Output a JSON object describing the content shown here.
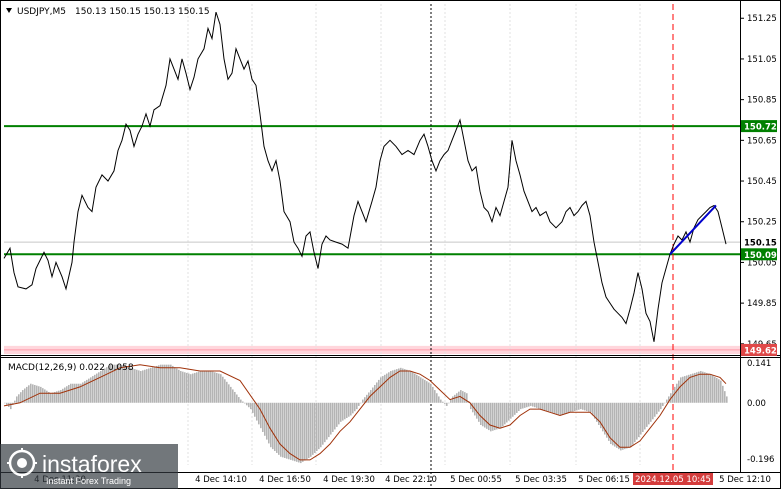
{
  "header": {
    "symbol": "USDJPY,M5",
    "ohlc": "150.13 150.15 150.13 150.15",
    "toggle_icon": "triangle-down-icon"
  },
  "price_axis": {
    "ticks": [
      "151.25",
      "151.05",
      "150.85",
      "150.65",
      "150.45",
      "150.25",
      "150.05",
      "149.85",
      "149.65"
    ]
  },
  "levels": {
    "resistance": "150.72",
    "support": "150.09",
    "current": "150.15",
    "low": "149.62"
  },
  "macd": {
    "label": "MACD(12,26,9) 0.022 0.058",
    "ticks": [
      "0.141",
      "0.00",
      "-0.196"
    ]
  },
  "time_axis": {
    "labels": [
      "4 Dec 11:30",
      "4 Dec 14:10",
      "4 Dec 16:50",
      "4 Dec 19:30",
      "4 Dec 22:10",
      "5 Dec 00:55",
      "5 Dec 03:35",
      "5 Dec 06:15",
      "2024.12.05 10:45",
      "5 Dec 12:10"
    ]
  },
  "watermark": {
    "brand": "instaforex",
    "tagline": "Instant Forex Trading",
    "logo_icon": "instaforex-logo-icon"
  },
  "colors": {
    "price_line": "#000000",
    "resistance": "#008000",
    "support": "#008000",
    "trend_line": "#0000cc",
    "red_marker": "#ff0000",
    "macd_hist": "#b4b4b4",
    "macd_signal": "#a0320a",
    "low_band": "#ffd6dc",
    "tag_bg": "#008000",
    "current_tag": "#000000"
  },
  "chart_data": {
    "type": "line",
    "title": "USDJPY,M5",
    "x": [
      "4 Dec 11:30",
      "4 Dec 14:10",
      "4 Dec 16:50",
      "4 Dec 19:30",
      "4 Dec 22:10",
      "5 Dec 00:55",
      "5 Dec 03:35",
      "5 Dec 06:15",
      "2024.12.05 10:45",
      "5 Dec 12:10"
    ],
    "ylim": [
      149.6,
      151.32
    ],
    "price_path": [
      [
        4,
        150.07
      ],
      [
        10,
        150.12
      ],
      [
        14,
        150.0
      ],
      [
        18,
        149.93
      ],
      [
        26,
        149.92
      ],
      [
        32,
        149.94
      ],
      [
        36,
        150.02
      ],
      [
        40,
        150.06
      ],
      [
        44,
        150.1
      ],
      [
        48,
        150.06
      ],
      [
        52,
        149.98
      ],
      [
        56,
        150.05
      ],
      [
        62,
        149.98
      ],
      [
        66,
        149.92
      ],
      [
        72,
        150.05
      ],
      [
        74,
        150.15
      ],
      [
        78,
        150.3
      ],
      [
        82,
        150.38
      ],
      [
        88,
        150.32
      ],
      [
        92,
        150.3
      ],
      [
        96,
        150.42
      ],
      [
        102,
        150.48
      ],
      [
        108,
        150.45
      ],
      [
        114,
        150.5
      ],
      [
        118,
        150.6
      ],
      [
        122,
        150.65
      ],
      [
        126,
        150.73
      ],
      [
        130,
        150.7
      ],
      [
        134,
        150.62
      ],
      [
        138,
        150.68
      ],
      [
        142,
        150.72
      ],
      [
        146,
        150.78
      ],
      [
        150,
        150.72
      ],
      [
        154,
        150.8
      ],
      [
        160,
        150.82
      ],
      [
        166,
        150.92
      ],
      [
        170,
        151.05
      ],
      [
        174,
        151.0
      ],
      [
        178,
        150.95
      ],
      [
        182,
        151.05
      ],
      [
        186,
        150.98
      ],
      [
        190,
        150.9
      ],
      [
        194,
        150.96
      ],
      [
        198,
        151.05
      ],
      [
        204,
        151.1
      ],
      [
        208,
        151.2
      ],
      [
        212,
        151.15
      ],
      [
        216,
        151.28
      ],
      [
        220,
        151.22
      ],
      [
        224,
        151.05
      ],
      [
        228,
        150.95
      ],
      [
        232,
        150.98
      ],
      [
        236,
        151.1
      ],
      [
        240,
        151.05
      ],
      [
        244,
        151.0
      ],
      [
        248,
        151.04
      ],
      [
        252,
        150.95
      ],
      [
        256,
        150.92
      ],
      [
        260,
        150.78
      ],
      [
        264,
        150.62
      ],
      [
        268,
        150.55
      ],
      [
        272,
        150.5
      ],
      [
        276,
        150.55
      ],
      [
        280,
        150.45
      ],
      [
        284,
        150.3
      ],
      [
        290,
        150.25
      ],
      [
        294,
        150.15
      ],
      [
        298,
        150.12
      ],
      [
        302,
        150.08
      ],
      [
        306,
        150.18
      ],
      [
        310,
        150.2
      ],
      [
        314,
        150.1
      ],
      [
        318,
        150.02
      ],
      [
        322,
        150.14
      ],
      [
        326,
        150.18
      ],
      [
        330,
        150.16
      ],
      [
        336,
        150.15
      ],
      [
        342,
        150.14
      ],
      [
        348,
        150.12
      ],
      [
        354,
        150.28
      ],
      [
        358,
        150.35
      ],
      [
        362,
        150.3
      ],
      [
        366,
        150.25
      ],
      [
        372,
        150.35
      ],
      [
        376,
        150.42
      ],
      [
        380,
        150.55
      ],
      [
        384,
        150.62
      ],
      [
        390,
        150.65
      ],
      [
        396,
        150.62
      ],
      [
        402,
        150.58
      ],
      [
        408,
        150.6
      ],
      [
        414,
        150.58
      ],
      [
        420,
        150.65
      ],
      [
        424,
        150.68
      ],
      [
        428,
        150.62
      ],
      [
        432,
        150.55
      ],
      [
        436,
        150.5
      ],
      [
        440,
        150.55
      ],
      [
        444,
        150.58
      ],
      [
        448,
        150.6
      ],
      [
        452,
        150.65
      ],
      [
        456,
        150.7
      ],
      [
        460,
        150.75
      ],
      [
        464,
        150.65
      ],
      [
        468,
        150.55
      ],
      [
        472,
        150.5
      ],
      [
        476,
        150.52
      ],
      [
        480,
        150.4
      ],
      [
        484,
        150.32
      ],
      [
        488,
        150.3
      ],
      [
        492,
        150.25
      ],
      [
        496,
        150.32
      ],
      [
        500,
        150.28
      ],
      [
        504,
        150.35
      ],
      [
        508,
        150.42
      ],
      [
        512,
        150.65
      ],
      [
        516,
        150.55
      ],
      [
        520,
        150.48
      ],
      [
        524,
        150.4
      ],
      [
        528,
        150.35
      ],
      [
        532,
        150.3
      ],
      [
        536,
        150.32
      ],
      [
        540,
        150.28
      ],
      [
        546,
        150.3
      ],
      [
        550,
        150.25
      ],
      [
        556,
        150.22
      ],
      [
        562,
        150.25
      ],
      [
        566,
        150.3
      ],
      [
        570,
        150.32
      ],
      [
        574,
        150.28
      ],
      [
        578,
        150.3
      ],
      [
        582,
        150.33
      ],
      [
        586,
        150.35
      ],
      [
        590,
        150.28
      ],
      [
        594,
        150.15
      ],
      [
        598,
        150.05
      ],
      [
        602,
        149.95
      ],
      [
        606,
        149.88
      ],
      [
        610,
        149.85
      ],
      [
        614,
        149.82
      ],
      [
        618,
        149.8
      ],
      [
        622,
        149.78
      ],
      [
        626,
        149.75
      ],
      [
        630,
        149.82
      ],
      [
        634,
        149.9
      ],
      [
        638,
        150.0
      ],
      [
        642,
        149.92
      ],
      [
        646,
        149.8
      ],
      [
        650,
        149.76
      ],
      [
        654,
        149.66
      ],
      [
        658,
        149.82
      ],
      [
        662,
        149.95
      ],
      [
        666,
        150.02
      ],
      [
        670,
        150.09
      ],
      [
        674,
        150.14
      ],
      [
        678,
        150.18
      ],
      [
        682,
        150.16
      ],
      [
        686,
        150.2
      ],
      [
        690,
        150.15
      ],
      [
        694,
        150.22
      ],
      [
        698,
        150.26
      ],
      [
        702,
        150.28
      ],
      [
        706,
        150.3
      ],
      [
        710,
        150.32
      ],
      [
        714,
        150.33
      ],
      [
        718,
        150.3
      ],
      [
        722,
        150.22
      ],
      [
        726,
        150.14
      ]
    ],
    "levels": [
      {
        "name": "150.72",
        "value": 150.72,
        "color": "#008000"
      },
      {
        "name": "150.09",
        "value": 150.09,
        "color": "#008000"
      },
      {
        "name": "150.15",
        "value": 150.15,
        "color": "#000000"
      },
      {
        "name": "149.62",
        "value": 149.62,
        "color": "#ffaaaa"
      }
    ],
    "trend_line": [
      [
        670,
        150.09
      ],
      [
        716,
        150.33
      ]
    ],
    "macd": {
      "label": "MACD(12,26,9) 0.022 0.058",
      "ylim": [
        -0.196,
        0.141
      ],
      "histogram": [
        [
          4,
          0.0
        ],
        [
          10,
          -0.02
        ],
        [
          16,
          0.02
        ],
        [
          22,
          0.04
        ],
        [
          30,
          0.06
        ],
        [
          40,
          0.05
        ],
        [
          50,
          0.03
        ],
        [
          60,
          0.04
        ],
        [
          70,
          0.06
        ],
        [
          80,
          0.06
        ],
        [
          90,
          0.08
        ],
        [
          100,
          0.1
        ],
        [
          110,
          0.12
        ],
        [
          120,
          0.12
        ],
        [
          130,
          0.11
        ],
        [
          140,
          0.1
        ],
        [
          150,
          0.11
        ],
        [
          160,
          0.12
        ],
        [
          170,
          0.12
        ],
        [
          180,
          0.1
        ],
        [
          190,
          0.09
        ],
        [
          200,
          0.1
        ],
        [
          210,
          0.1
        ],
        [
          220,
          0.09
        ],
        [
          230,
          0.05
        ],
        [
          240,
          0.01
        ],
        [
          250,
          -0.02
        ],
        [
          260,
          -0.08
        ],
        [
          270,
          -0.14
        ],
        [
          280,
          -0.17
        ],
        [
          290,
          -0.18
        ],
        [
          300,
          -0.19
        ],
        [
          310,
          -0.17
        ],
        [
          320,
          -0.14
        ],
        [
          330,
          -0.1
        ],
        [
          340,
          -0.06
        ],
        [
          350,
          -0.04
        ],
        [
          356,
          -0.02
        ],
        [
          362,
          0.01
        ],
        [
          370,
          0.04
        ],
        [
          380,
          0.08
        ],
        [
          390,
          0.1
        ],
        [
          400,
          0.11
        ],
        [
          410,
          0.1
        ],
        [
          420,
          0.08
        ],
        [
          430,
          0.06
        ],
        [
          436,
          0.03
        ],
        [
          440,
          0.01
        ],
        [
          446,
          -0.01
        ],
        [
          452,
          0.02
        ],
        [
          460,
          0.04
        ],
        [
          466,
          0.03
        ],
        [
          470,
          -0.02
        ],
        [
          480,
          -0.07
        ],
        [
          490,
          -0.09
        ],
        [
          500,
          -0.08
        ],
        [
          510,
          -0.05
        ],
        [
          520,
          -0.02
        ],
        [
          530,
          -0.01
        ],
        [
          540,
          -0.02
        ],
        [
          550,
          -0.03
        ],
        [
          560,
          -0.04
        ],
        [
          570,
          -0.03
        ],
        [
          580,
          -0.02
        ],
        [
          590,
          -0.03
        ],
        [
          600,
          -0.08
        ],
        [
          610,
          -0.13
        ],
        [
          620,
          -0.15
        ],
        [
          630,
          -0.14
        ],
        [
          640,
          -0.1
        ],
        [
          650,
          -0.06
        ],
        [
          660,
          -0.02
        ],
        [
          670,
          0.03
        ],
        [
          680,
          0.08
        ],
        [
          690,
          0.09
        ],
        [
          700,
          0.1
        ],
        [
          710,
          0.09
        ],
        [
          720,
          0.07
        ],
        [
          726,
          0.02
        ]
      ],
      "signal": [
        [
          4,
          -0.01
        ],
        [
          20,
          0.0
        ],
        [
          40,
          0.03
        ],
        [
          60,
          0.03
        ],
        [
          80,
          0.05
        ],
        [
          100,
          0.08
        ],
        [
          120,
          0.11
        ],
        [
          140,
          0.12
        ],
        [
          160,
          0.11
        ],
        [
          180,
          0.11
        ],
        [
          200,
          0.1
        ],
        [
          220,
          0.1
        ],
        [
          240,
          0.07
        ],
        [
          260,
          -0.02
        ],
        [
          270,
          -0.08
        ],
        [
          280,
          -0.13
        ],
        [
          290,
          -0.16
        ],
        [
          300,
          -0.18
        ],
        [
          310,
          -0.18
        ],
        [
          320,
          -0.16
        ],
        [
          330,
          -0.13
        ],
        [
          340,
          -0.09
        ],
        [
          350,
          -0.06
        ],
        [
          360,
          -0.02
        ],
        [
          370,
          0.02
        ],
        [
          380,
          0.05
        ],
        [
          390,
          0.08
        ],
        [
          400,
          0.1
        ],
        [
          410,
          0.1
        ],
        [
          420,
          0.09
        ],
        [
          430,
          0.07
        ],
        [
          440,
          0.04
        ],
        [
          450,
          0.01
        ],
        [
          460,
          0.02
        ],
        [
          470,
          0.0
        ],
        [
          480,
          -0.04
        ],
        [
          490,
          -0.07
        ],
        [
          500,
          -0.08
        ],
        [
          510,
          -0.07
        ],
        [
          520,
          -0.04
        ],
        [
          530,
          -0.02
        ],
        [
          540,
          -0.02
        ],
        [
          550,
          -0.03
        ],
        [
          560,
          -0.04
        ],
        [
          570,
          -0.03
        ],
        [
          580,
          -0.03
        ],
        [
          590,
          -0.03
        ],
        [
          600,
          -0.06
        ],
        [
          610,
          -0.11
        ],
        [
          620,
          -0.14
        ],
        [
          630,
          -0.14
        ],
        [
          640,
          -0.12
        ],
        [
          650,
          -0.08
        ],
        [
          660,
          -0.04
        ],
        [
          670,
          0.01
        ],
        [
          680,
          0.05
        ],
        [
          690,
          0.08
        ],
        [
          700,
          0.09
        ],
        [
          710,
          0.09
        ],
        [
          720,
          0.08
        ],
        [
          726,
          0.06
        ]
      ]
    }
  }
}
